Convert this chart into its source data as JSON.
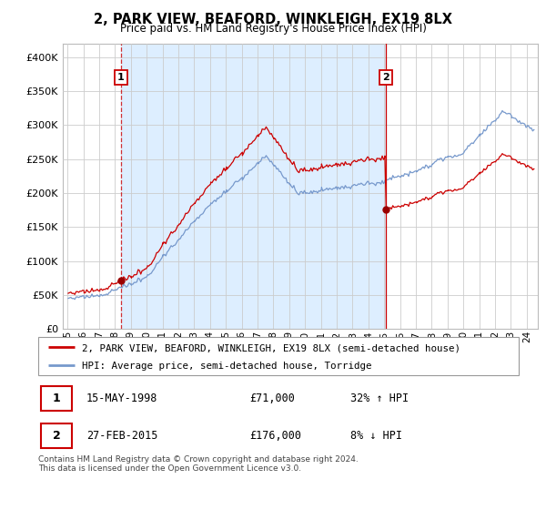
{
  "title": "2, PARK VIEW, BEAFORD, WINKLEIGH, EX19 8LX",
  "subtitle": "Price paid vs. HM Land Registry's House Price Index (HPI)",
  "sale1_yr": 1998.37,
  "sale1_price": 71000,
  "sale2_yr": 2015.12,
  "sale2_price": 176000,
  "legend_line1": "2, PARK VIEW, BEAFORD, WINKLEIGH, EX19 8LX (semi-detached house)",
  "legend_line2": "HPI: Average price, semi-detached house, Torridge",
  "table_row1": [
    "1",
    "15-MAY-1998",
    "£71,000",
    "32% ↑ HPI"
  ],
  "table_row2": [
    "2",
    "27-FEB-2015",
    "£176,000",
    "8% ↓ HPI"
  ],
  "footer": "Contains HM Land Registry data © Crown copyright and database right 2024.\nThis data is licensed under the Open Government Licence v3.0.",
  "sale_color": "#cc0000",
  "hpi_color": "#7799cc",
  "shade_color": "#ddeeff",
  "dashed_color": "#cc0000",
  "dot_color": "#990000",
  "ylim": [
    0,
    420000
  ],
  "yticks": [
    0,
    50000,
    100000,
    150000,
    200000,
    250000,
    300000,
    350000,
    400000
  ],
  "xlim_left": 1994.7,
  "xlim_right": 2024.7,
  "background_color": "#ffffff",
  "grid_color": "#cccccc"
}
